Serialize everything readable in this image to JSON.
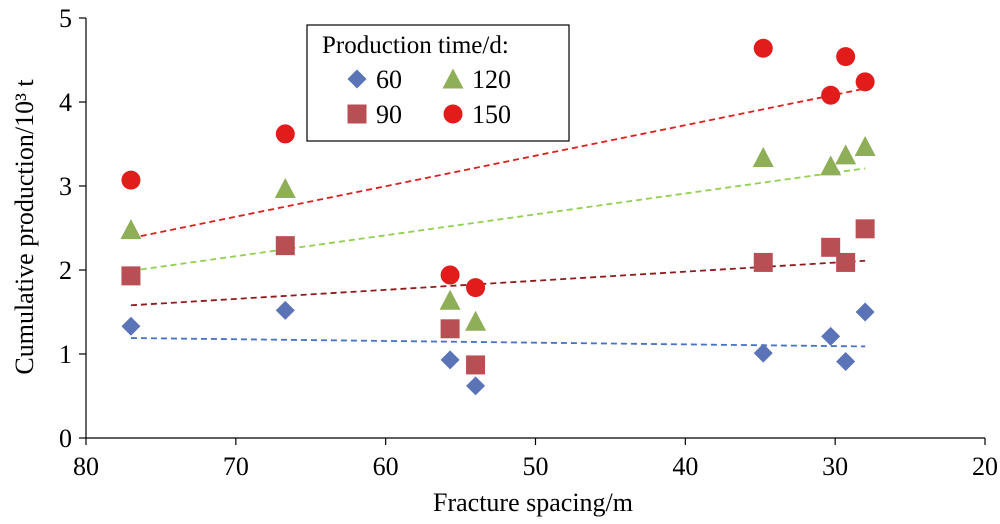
{
  "chart_data": {
    "type": "scatter",
    "xlabel": "Fracture spacing/m",
    "ylabel": "Cumulative production/10³ t",
    "x_reversed": true,
    "xlim": [
      80,
      20
    ],
    "ylim": [
      0,
      5
    ],
    "xticks": [
      80,
      70,
      60,
      50,
      40,
      30,
      20
    ],
    "yticks": [
      0,
      1,
      2,
      3,
      4,
      5
    ],
    "grid": false,
    "legend": {
      "title": "Production time/d:",
      "placement": "top-left"
    },
    "trendlines": true,
    "series": [
      {
        "name": "60",
        "marker": "diamond",
        "color": "#5B74B8",
        "trend_color": "#4472C4",
        "x": [
          77,
          66.7,
          55.7,
          54,
          34.8,
          30.3,
          29.3,
          28
        ],
        "y": [
          1.33,
          1.52,
          0.93,
          0.62,
          1.01,
          1.21,
          0.91,
          1.5
        ],
        "trend": [
          [
            77,
            1.19
          ],
          [
            28,
            1.09
          ]
        ]
      },
      {
        "name": "90",
        "marker": "square",
        "color": "#B84F55",
        "trend_color": "#8E1B1B",
        "x": [
          77,
          66.7,
          55.7,
          54,
          34.8,
          30.3,
          29.3,
          28
        ],
        "y": [
          1.93,
          2.29,
          1.3,
          0.87,
          2.09,
          2.27,
          2.09,
          2.49
        ],
        "trend": [
          [
            77,
            1.58
          ],
          [
            28,
            2.11
          ]
        ]
      },
      {
        "name": "120",
        "marker": "triangle",
        "color": "#8FAE58",
        "trend_color": "#92D050",
        "x": [
          77,
          66.7,
          55.7,
          54,
          34.8,
          30.3,
          29.3,
          28
        ],
        "y": [
          2.48,
          2.97,
          1.64,
          1.39,
          3.34,
          3.24,
          3.37,
          3.47
        ],
        "trend": [
          [
            77,
            1.99
          ],
          [
            28,
            3.21
          ]
        ]
      },
      {
        "name": "150",
        "marker": "circle",
        "color": "#E21B1B",
        "trend_color": "#E21B1B",
        "x": [
          77,
          66.7,
          55.7,
          54,
          34.8,
          30.3,
          29.3,
          28
        ],
        "y": [
          3.07,
          3.62,
          1.94,
          1.79,
          4.64,
          4.08,
          4.54,
          4.24
        ],
        "trend": [
          [
            77,
            2.38
          ],
          [
            28,
            4.16
          ]
        ]
      }
    ]
  }
}
